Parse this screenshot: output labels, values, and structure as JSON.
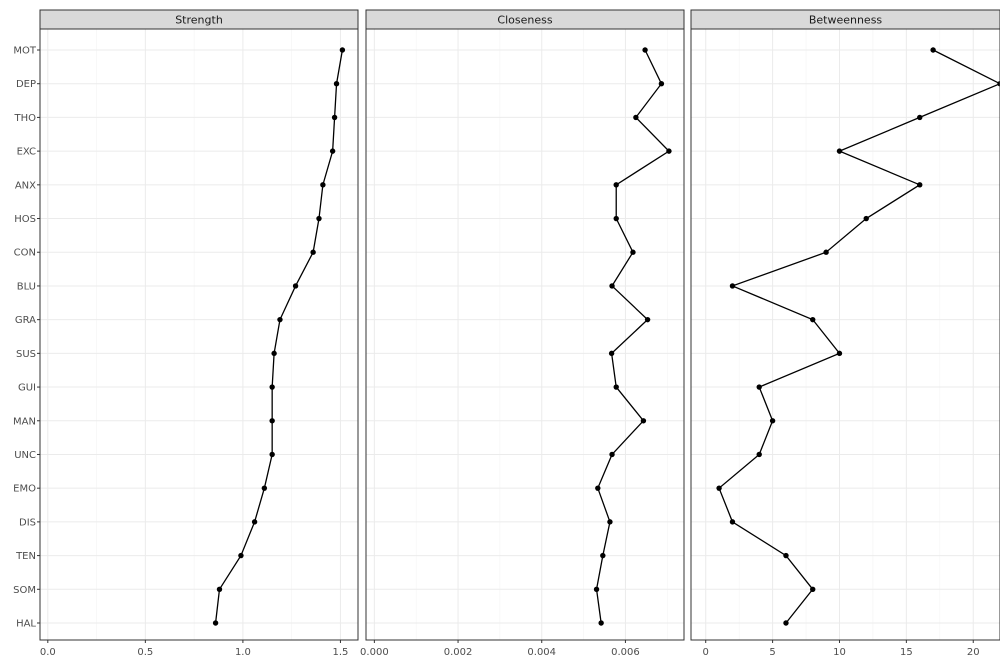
{
  "chart_data": {
    "type": "line",
    "categories": [
      "MOT",
      "DEP",
      "THO",
      "EXC",
      "ANX",
      "HOS",
      "CON",
      "BLU",
      "GRA",
      "SUS",
      "GUI",
      "MAN",
      "UNC",
      "EMO",
      "DIS",
      "TEN",
      "SOM",
      "HAL"
    ],
    "grid": true,
    "panels": [
      {
        "title": "Strength",
        "xlim": [
          -0.04,
          1.59
        ],
        "xticks": [
          0.0,
          0.5,
          1.0,
          1.5
        ],
        "xtick_labels": [
          "0.0",
          "0.5",
          "1.0",
          "1.5"
        ],
        "values": [
          1.51,
          1.48,
          1.47,
          1.46,
          1.41,
          1.39,
          1.36,
          1.27,
          1.19,
          1.16,
          1.15,
          1.15,
          1.15,
          1.11,
          1.06,
          0.99,
          0.88,
          0.86
        ]
      },
      {
        "title": "Closeness",
        "xlim": [
          -0.0002,
          0.0074
        ],
        "xticks": [
          0.0,
          0.002,
          0.004,
          0.006
        ],
        "xtick_labels": [
          "0.000",
          "0.002",
          "0.004",
          "0.006"
        ],
        "values": [
          0.00647,
          0.00686,
          0.00625,
          0.00704,
          0.00578,
          0.00578,
          0.00618,
          0.00568,
          0.00653,
          0.00567,
          0.00578,
          0.00643,
          0.00568,
          0.00534,
          0.00563,
          0.00546,
          0.00531,
          0.00542
        ]
      },
      {
        "title": "Betweenness",
        "xlim": [
          -1.1,
          22.0
        ],
        "xticks": [
          0,
          5,
          10,
          15,
          20
        ],
        "xtick_labels": [
          "0",
          "5",
          "10",
          "15",
          "20"
        ],
        "values": [
          17,
          22,
          16,
          10,
          16,
          12,
          9,
          2,
          8,
          10,
          4,
          5,
          4,
          1,
          2,
          6,
          8,
          6
        ]
      }
    ]
  }
}
